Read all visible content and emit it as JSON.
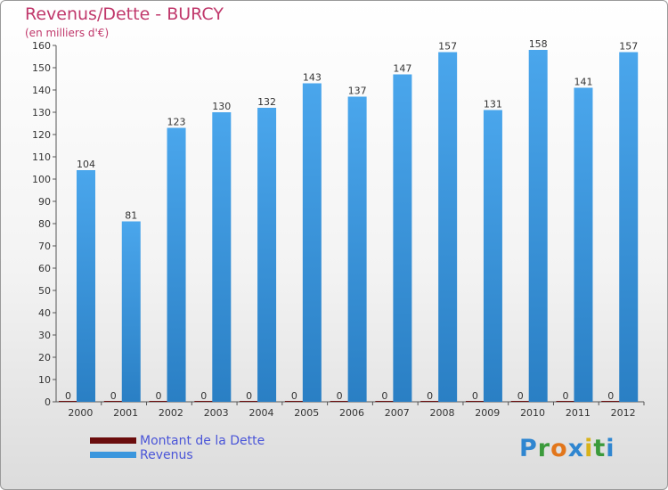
{
  "header": {
    "title": "Revenus/Dette - BURCY",
    "subtitle": "(en milliers d'€)"
  },
  "colors": {
    "revenus": "#3b96dd",
    "dette": "#6b0d0d",
    "title": "#c0386b",
    "legend_text": "#4a55d8"
  },
  "logo": {
    "text": "Proxiti",
    "letters": [
      {
        "ch": "P",
        "color": "#2f86d0"
      },
      {
        "ch": "r",
        "color": "#3b9a3b"
      },
      {
        "ch": "o",
        "color": "#e2761b"
      },
      {
        "ch": "x",
        "color": "#2f86d0"
      },
      {
        "ch": "i",
        "color": "#d8b21a"
      },
      {
        "ch": "t",
        "color": "#3b9a3b"
      },
      {
        "ch": "i",
        "color": "#2f86d0"
      }
    ]
  },
  "legend": {
    "items": [
      {
        "label": "Montant de la Dette",
        "color": "#6b0d0d"
      },
      {
        "label": "Revenus",
        "color": "#3b96dd"
      }
    ]
  },
  "chart_data": {
    "type": "bar",
    "title": "Revenus/Dette - BURCY",
    "subtitle": "(en milliers d'€)",
    "xlabel": "",
    "ylabel": "",
    "ylim": [
      0,
      160
    ],
    "yticks": [
      0,
      10,
      20,
      30,
      40,
      50,
      60,
      70,
      80,
      90,
      100,
      110,
      120,
      130,
      140,
      150,
      160
    ],
    "categories": [
      "2000",
      "2001",
      "2002",
      "2003",
      "2004",
      "2005",
      "2006",
      "2007",
      "2008",
      "2009",
      "2010",
      "2011",
      "2012"
    ],
    "series": [
      {
        "name": "Montant de la Dette",
        "color": "#6b0d0d",
        "values": [
          0,
          0,
          0,
          0,
          0,
          0,
          0,
          0,
          0,
          0,
          0,
          0,
          0
        ]
      },
      {
        "name": "Revenus",
        "color": "#3b96dd",
        "values": [
          104,
          81,
          123,
          130,
          132,
          143,
          137,
          147,
          157,
          131,
          158,
          141,
          157
        ]
      }
    ],
    "legend_position": "bottom-left",
    "grid": false
  }
}
